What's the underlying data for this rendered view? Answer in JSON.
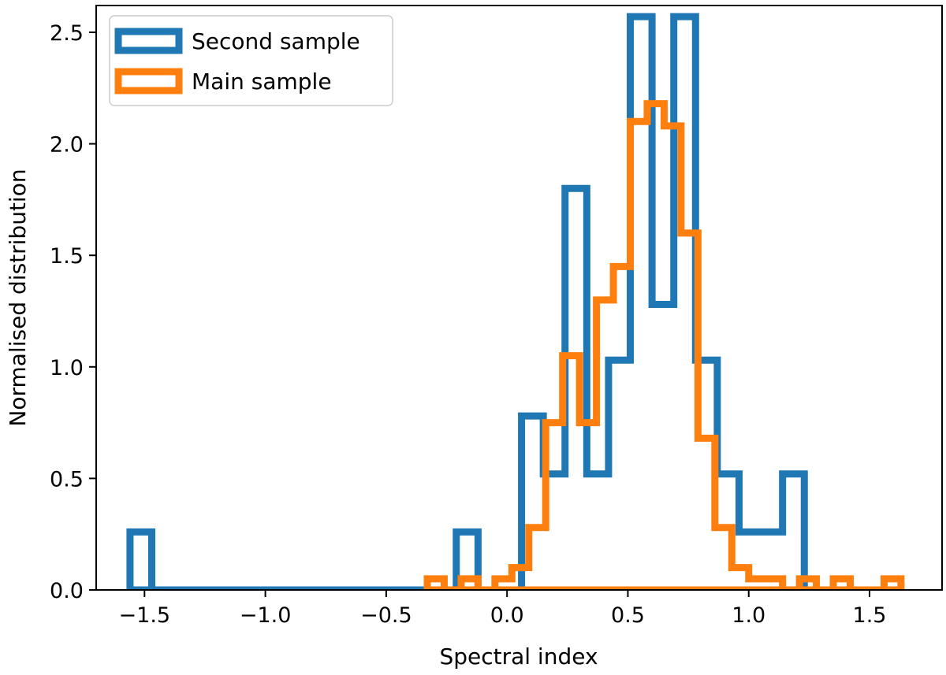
{
  "chart_data": {
    "type": "histogram",
    "xlabel": "Spectral index",
    "ylabel": "Normalised distribution",
    "xlim": [
      -1.7,
      1.8
    ],
    "ylim": [
      0,
      2.62
    ],
    "xticks": [
      -1.5,
      -1.0,
      -0.5,
      0.0,
      0.5,
      1.0,
      1.5
    ],
    "xtick_labels": [
      "−1.5",
      "−1.0",
      "−0.5",
      "0.0",
      "0.5",
      "1.0",
      "1.5"
    ],
    "yticks": [
      0.0,
      0.5,
      1.0,
      1.5,
      2.0,
      2.5
    ],
    "ytick_labels": [
      "0.0",
      "0.5",
      "1.0",
      "1.5",
      "2.0",
      "2.5"
    ],
    "legend_position": "top-left",
    "series": [
      {
        "name": "Second sample",
        "color": "#1f77b4",
        "bin_edges": [
          -1.56,
          -1.47,
          -1.38,
          -1.29,
          -1.2,
          -1.11,
          -1.02,
          -0.93,
          -0.84,
          -0.75,
          -0.66,
          -0.57,
          -0.48,
          -0.39,
          -0.3,
          -0.21,
          -0.12,
          -0.03,
          0.06,
          0.15,
          0.24,
          0.33,
          0.42,
          0.51,
          0.6,
          0.69,
          0.78,
          0.87,
          0.96,
          1.05,
          1.14,
          1.23
        ],
        "values": [
          0.26,
          0,
          0,
          0,
          0,
          0,
          0,
          0,
          0,
          0,
          0,
          0,
          0,
          0,
          0,
          0.26,
          0,
          0,
          0.78,
          0.52,
          1.8,
          0.52,
          1.03,
          2.57,
          1.28,
          2.57,
          1.03,
          0.52,
          0.26,
          0.26,
          0.52
        ]
      },
      {
        "name": "Main sample",
        "color": "#ff7f0e",
        "bin_edges": [
          -0.33,
          -0.26,
          -0.19,
          -0.12,
          -0.05,
          0.02,
          0.09,
          0.16,
          0.23,
          0.3,
          0.37,
          0.44,
          0.51,
          0.58,
          0.65,
          0.72,
          0.79,
          0.86,
          0.93,
          1.0,
          1.07,
          1.14,
          1.21,
          1.28,
          1.35,
          1.42,
          1.49,
          1.56,
          1.63
        ],
        "values": [
          0.05,
          0,
          0.05,
          0,
          0.05,
          0.1,
          0.28,
          0.75,
          1.05,
          0.75,
          1.3,
          1.45,
          2.1,
          2.18,
          2.08,
          1.6,
          0.68,
          0.28,
          0.1,
          0.05,
          0.05,
          0,
          0.05,
          0,
          0.05,
          0,
          0,
          0.05
        ]
      }
    ]
  }
}
